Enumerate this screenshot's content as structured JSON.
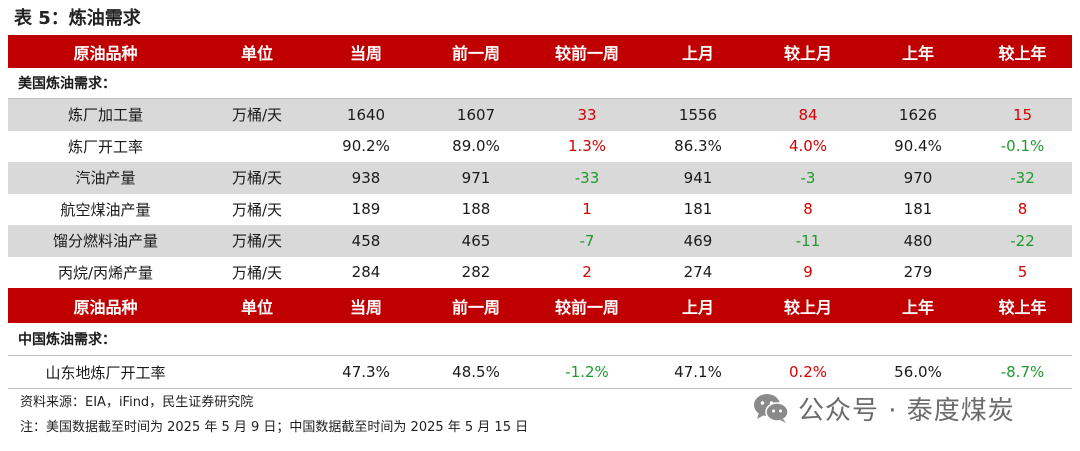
{
  "title": "表 5：炼油需求",
  "headers": [
    "原油品种",
    "单位",
    "当周",
    "前一周",
    "较前一周",
    "上月",
    "较上月",
    "上年",
    "较上年"
  ],
  "sections": [
    {
      "label": "美国炼油需求：",
      "rows": [
        {
          "name": "炼厂加工量",
          "unit": "万桶/天",
          "cur": "1640",
          "prev": "1607",
          "d_prev": "33",
          "d_prev_sign": "pos",
          "month": "1556",
          "d_month": "84",
          "d_month_sign": "pos",
          "year": "1626",
          "d_year": "15",
          "d_year_sign": "pos"
        },
        {
          "name": "炼厂开工率",
          "unit": "",
          "cur": "90.2%",
          "prev": "89.0%",
          "d_prev": "1.3%",
          "d_prev_sign": "pos",
          "month": "86.3%",
          "d_month": "4.0%",
          "d_month_sign": "pos",
          "year": "90.4%",
          "d_year": "-0.1%",
          "d_year_sign": "neg"
        },
        {
          "name": "汽油产量",
          "unit": "万桶/天",
          "cur": "938",
          "prev": "971",
          "d_prev": "-33",
          "d_prev_sign": "neg",
          "month": "941",
          "d_month": "-3",
          "d_month_sign": "neg",
          "year": "970",
          "d_year": "-32",
          "d_year_sign": "neg"
        },
        {
          "name": "航空煤油产量",
          "unit": "万桶/天",
          "cur": "189",
          "prev": "188",
          "d_prev": "1",
          "d_prev_sign": "pos",
          "month": "181",
          "d_month": "8",
          "d_month_sign": "pos",
          "year": "181",
          "d_year": "8",
          "d_year_sign": "pos"
        },
        {
          "name": "馏分燃料油产量",
          "unit": "万桶/天",
          "cur": "458",
          "prev": "465",
          "d_prev": "-7",
          "d_prev_sign": "neg",
          "month": "469",
          "d_month": "-11",
          "d_month_sign": "neg",
          "year": "480",
          "d_year": "-22",
          "d_year_sign": "neg"
        },
        {
          "name": "丙烷/丙烯产量",
          "unit": "万桶/天",
          "cur": "284",
          "prev": "282",
          "d_prev": "2",
          "d_prev_sign": "pos",
          "month": "274",
          "d_month": "9",
          "d_month_sign": "pos",
          "year": "279",
          "d_year": "5",
          "d_year_sign": "pos"
        }
      ]
    },
    {
      "label": "中国炼油需求：",
      "rows": [
        {
          "name": "山东地炼厂开工率",
          "unit": "",
          "cur": "47.3%",
          "prev": "48.5%",
          "d_prev": "-1.2%",
          "d_prev_sign": "neg",
          "month": "47.1%",
          "d_month": "0.2%",
          "d_month_sign": "pos",
          "year": "56.0%",
          "d_year": "-8.7%",
          "d_year_sign": "neg"
        }
      ]
    }
  ],
  "source": "资料来源：EIA，iFind，民生证券研究院",
  "note": "注：美国数据截至时间为 2025 年 5 月 9 日；中国数据截至时间为 2025 年 5 月 15 日",
  "watermark": "公众号 · 泰度煤炭",
  "watermark_icon": "wechat-icon",
  "colors": {
    "header_bg": "#c00000",
    "positive": "#d40000",
    "negative": "#1f9a2e",
    "stripe": "#d9d9d9"
  }
}
